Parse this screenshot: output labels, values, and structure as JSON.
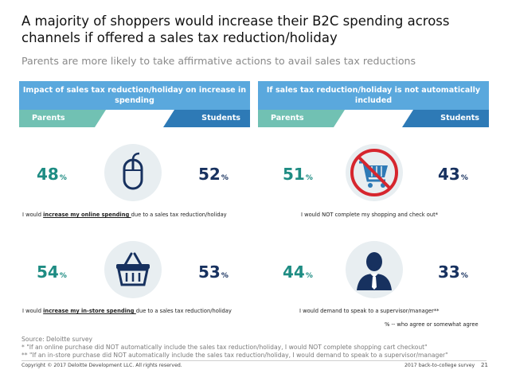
{
  "title": "A majority of shoppers would increase their B2C spending across channels if offered a sales tax reduction/holiday",
  "subtitle": "Parents are more likely to take affirmative actions to avail sales tax reductions",
  "colors": {
    "header": "#5aa8dd",
    "parents": "#71c1b3",
    "students": "#2e7ab6",
    "parents_text": "#1e8c83",
    "students_text": "#17315f"
  },
  "panels": [
    {
      "header": "Impact of sales tax reduction/holiday on increase in spending",
      "parents_label": "Parents",
      "students_label": "Students",
      "rows": [
        {
          "icon": "computer-mouse-icon",
          "caption_pre": "I would ",
          "caption_emph": "increase my online spending ",
          "caption_post": "due to a sales tax reduction/holiday"
        },
        {
          "icon": "shopping-basket-icon",
          "caption_pre": "I would ",
          "caption_emph": "increase my in-store spending ",
          "caption_post": "due to a sales tax reduction/holiday"
        }
      ]
    },
    {
      "header": "If sales tax reduction/holiday is not automatically included",
      "parents_label": "Parents",
      "students_label": "Students",
      "rows": [
        {
          "icon": "no-shopping-cart-icon",
          "caption": "I would NOT complete my shopping and check out*"
        },
        {
          "icon": "manager-person-icon",
          "caption": "I would demand to speak to a supervisor/manager**"
        }
      ]
    }
  ],
  "chart_data": {
    "type": "table",
    "title": "A majority of shoppers would increase their B2C spending across channels if offered a sales tax reduction/holiday",
    "unit": "%",
    "series_names": [
      "Parents",
      "Students"
    ],
    "rows": [
      {
        "group": "Impact of sales tax reduction/holiday on increase in spending",
        "statement": "I would increase my online spending due to a sales tax reduction/holiday",
        "parents": 48,
        "students": 52
      },
      {
        "group": "Impact of sales tax reduction/holiday on increase in spending",
        "statement": "I would increase my in-store spending due to a sales tax reduction/holiday",
        "parents": 54,
        "students": 53
      },
      {
        "group": "If sales tax reduction/holiday is not automatically included",
        "statement": "I would NOT complete my shopping and check out*",
        "parents": 51,
        "students": 43
      },
      {
        "group": "If sales tax reduction/holiday is not automatically included",
        "statement": "I would demand to speak to a supervisor/manager**",
        "parents": 44,
        "students": 33
      }
    ]
  },
  "percent_symbol": "%",
  "legend_note": "% -- who agree or somewhat agree",
  "source_lines": [
    "Source: Deloitte survey",
    "* \"If an online purchase did NOT automatically include the sales tax reduction/holiday, I would NOT complete shopping cart checkout\"",
    "** \"If an in-store purchase did NOT automatically include the sales tax reduction/holiday, I would demand to speak to a supervisor/manager\""
  ],
  "footer": {
    "copyright": "Copyright © 2017 Deloitte Development LLC. All rights reserved.",
    "survey": "2017 back-to-college survey",
    "page": "21"
  }
}
